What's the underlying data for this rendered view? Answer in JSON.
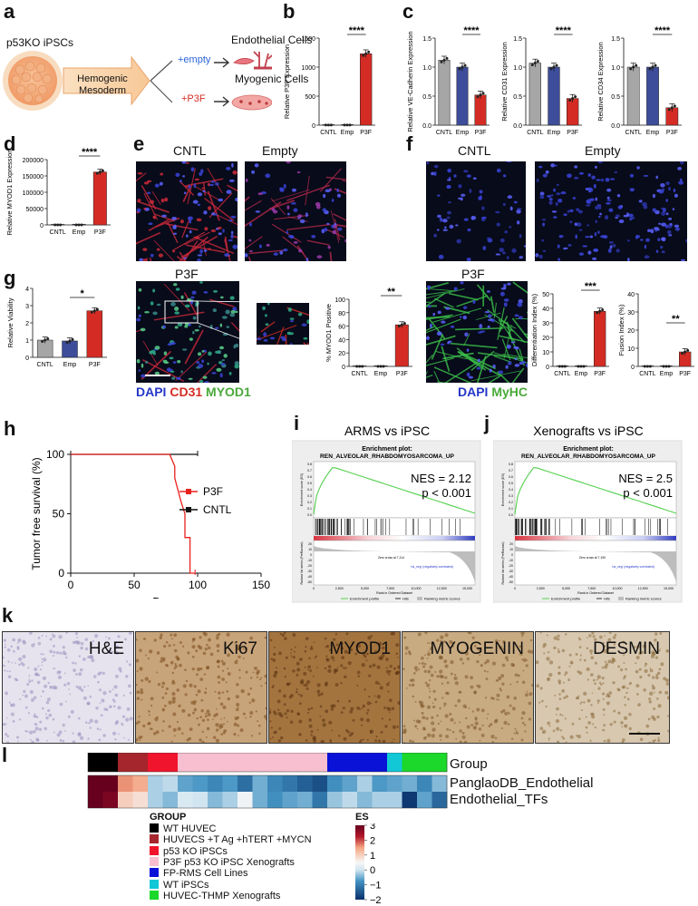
{
  "panels": {
    "a": "a",
    "b": "b",
    "c": "c",
    "d": "d",
    "e": "e",
    "f": "f",
    "g": "g",
    "h": "h",
    "i": "i",
    "j": "j",
    "k": "k",
    "l": "l"
  },
  "schematic": {
    "source": "p53KO iPSCs",
    "mesoderm_line1": "Hemogenic",
    "mesoderm_line2": "Mesoderm",
    "plus_empty": "+empty",
    "plus_p3f": "+P3F",
    "endothelial": "Endothelial Cells",
    "myogenic": "Myogenic Cells"
  },
  "colors": {
    "cntl": "#a6a6a6",
    "emp": "#3d4d9a",
    "p3f": "#d42c24",
    "nes_line": "#54d04e"
  },
  "chart_data": [
    {
      "id": "b",
      "type": "bar",
      "categories": [
        "CNTL",
        "Emp",
        "P3F"
      ],
      "values": [
        1,
        1,
        1230
      ],
      "ylabel": "Relative P3F Expression",
      "ylim": [
        0,
        1500
      ],
      "yticks": [
        0,
        500,
        1000,
        1500
      ],
      "significance": "****"
    },
    {
      "id": "c1",
      "type": "bar",
      "categories": [
        "CNTL",
        "Emp",
        "P3F"
      ],
      "values": [
        1.12,
        1.0,
        0.52
      ],
      "ylabel": "Relative VE-Cadherin Expression",
      "ylim": [
        0,
        1.5
      ],
      "yticks": [
        0.0,
        0.5,
        1.0,
        1.5
      ],
      "significance": "****"
    },
    {
      "id": "c2",
      "type": "bar",
      "categories": [
        "CNTL",
        "Emp",
        "P3F"
      ],
      "values": [
        1.07,
        1.0,
        0.46
      ],
      "ylabel": "Relative CD31 Expression",
      "ylim": [
        0,
        1.5
      ],
      "yticks": [
        0.0,
        0.5,
        1.0,
        1.5
      ],
      "significance": "****"
    },
    {
      "id": "c3",
      "type": "bar",
      "categories": [
        "CNTL",
        "Emp",
        "P3F"
      ],
      "values": [
        1.0,
        1.0,
        0.3
      ],
      "ylabel": "Relative CD34 Expression",
      "ylim": [
        0,
        1.5
      ],
      "yticks": [
        0.0,
        0.5,
        1.0,
        1.5
      ],
      "significance": "****"
    },
    {
      "id": "d",
      "type": "bar",
      "categories": [
        "CNTL",
        "Emp",
        "P3F"
      ],
      "values": [
        1,
        1,
        162000
      ],
      "ylabel": "Relative MYOD1 Expression",
      "ylim": [
        0,
        200000
      ],
      "yticks": [
        0,
        50000,
        100000,
        150000,
        200000
      ],
      "significance": "****"
    },
    {
      "id": "g",
      "type": "bar",
      "categories": [
        "CNTL",
        "Emp",
        "P3F"
      ],
      "values": [
        1.0,
        0.95,
        2.7
      ],
      "ylabel": "Relative Viability",
      "ylim": [
        0,
        4
      ],
      "yticks": [
        0,
        1,
        2,
        3,
        4
      ],
      "significance": "*"
    },
    {
      "id": "e2",
      "type": "bar",
      "categories": [
        "CNTL",
        "Emp",
        "P3F"
      ],
      "values": [
        0,
        0,
        62
      ],
      "ylabel": "% MYOD1 Positive",
      "ylim": [
        0,
        100
      ],
      "yticks": [
        0,
        20,
        40,
        60,
        80,
        100
      ],
      "significance": "**"
    },
    {
      "id": "f1",
      "type": "bar",
      "categories": [
        "CNTL",
        "Emp",
        "P3F"
      ],
      "values": [
        0,
        0,
        38
      ],
      "ylabel": "Differentiation Index (%)",
      "ylim": [
        0,
        50
      ],
      "yticks": [
        0,
        10,
        20,
        30,
        40,
        50
      ],
      "significance": "***"
    },
    {
      "id": "f2",
      "type": "bar",
      "categories": [
        "CNTL",
        "Emp",
        "P3F"
      ],
      "values": [
        0,
        0,
        8
      ],
      "ylabel": "Fusion Index (%)",
      "ylim": [
        0,
        40
      ],
      "yticks": [
        0,
        10,
        20,
        30,
        40
      ],
      "significance": "**"
    },
    {
      "id": "h",
      "type": "line",
      "title": "",
      "xlabel": "Days",
      "ylabel": "Tumor free survival (%)",
      "xlim": [
        0,
        150
      ],
      "ylim": [
        0,
        100
      ],
      "xticks": [
        0,
        50,
        100,
        150
      ],
      "yticks": [
        0,
        50,
        100
      ],
      "series": [
        {
          "name": "P3F",
          "x": [
            0,
            78,
            82,
            82,
            87,
            87,
            90,
            90,
            94,
            94,
            98
          ],
          "y": [
            100,
            100,
            90,
            80,
            60,
            60,
            50,
            30,
            30,
            0,
            0
          ]
        },
        {
          "name": "CNTL",
          "x": [
            0,
            100
          ],
          "y": [
            100,
            100
          ]
        }
      ]
    }
  ],
  "micro_e": {
    "cntl": "CNTL",
    "empty": "Empty",
    "p3f": "P3F",
    "stain_dapi": "DAPI",
    "stain_cd31": "CD31",
    "stain_myod1": "MYOD1"
  },
  "micro_f": {
    "cntl": "CNTL",
    "empty": "Empty",
    "p3f": "P3F",
    "stain_dapi": "DAPI",
    "stain_myhc": "MyHC"
  },
  "gsea": [
    {
      "title": "ARMS vs iPSC",
      "plot_title1": "Enrichment plot:",
      "plot_title2": "REN_ALVEOLAR_RHABDOMYOSARCOMA_UP",
      "nes": "NES = 2.12",
      "p": "p < 0.001",
      "xlabel": "Rank in Ordered Dataset",
      "ylabel_top": "Enrichment score (ES)",
      "ylabel_bottom": "Ranked list metric (PreRanked)",
      "pos_label": "'na_pos' (positively correlated)",
      "neg_label": "'na_neg' (negatively correlated)",
      "zero_cross": "Zero cross at 7,114",
      "legend": [
        "Enrichment profile",
        "Hits",
        "Ranking metric scores"
      ],
      "es_ticks": [
        "0.8",
        "0.7",
        "0.6",
        "0.5",
        "0.4",
        "0.3",
        "0.2",
        "0.1",
        "0.0"
      ],
      "metric_ticks": [
        "20",
        "10",
        "0",
        "-10",
        "-20",
        "-30",
        "-40",
        "-50"
      ],
      "xticks": [
        "0",
        "2,500",
        "5,000",
        "7,500",
        "10,000",
        "12,500",
        "15,000"
      ]
    },
    {
      "title": "Xenografts vs iPSC",
      "plot_title1": "Enrichment plot:",
      "plot_title2": "REN_ALVEOLAR_RHABDOMYOSARCOMA_UP",
      "nes": "NES = 2.5",
      "p": "p < 0.001",
      "xlabel": "Rank in Ordered Dataset",
      "ylabel_top": "Enrichment score (ES)",
      "ylabel_bottom": "Ranked list metric (PreRanked)",
      "pos_label": "'na_pos' (positively correlated)",
      "neg_label": "'na_neg' (negatively correlated)",
      "zero_cross": "Zero cross at 7,190",
      "legend": [
        "Enrichment profile",
        "Hits",
        "Ranking metric scores"
      ],
      "es_ticks": [
        "0.8",
        "0.7",
        "0.6",
        "0.5",
        "0.4",
        "0.3",
        "0.2",
        "0.1",
        "0.0"
      ],
      "metric_ticks": [
        "20",
        "10",
        "0",
        "-10",
        "-20",
        "-30",
        "-40",
        "-50"
      ],
      "xticks": [
        "0",
        "2,500",
        "5,000",
        "7,500",
        "10,000",
        "12,500",
        "15,000"
      ]
    }
  ],
  "ihc": [
    "H&E",
    "Ki67",
    "MYOD1",
    "MYOGENIN",
    "DESMIN"
  ],
  "heatmap": {
    "row_labels": [
      "Group",
      "PanglaoDB_Endothelial",
      "Endothelial_TFs"
    ],
    "group_title": "GROUP",
    "groups": [
      {
        "name": "WT HUVEC",
        "color": "#000000",
        "count": 2
      },
      {
        "name": "HUVECS +T Ag +hTERT +MYCN",
        "color": "#a6262d",
        "count": 2
      },
      {
        "name": "p53 KO iPSCs",
        "color": "#f0142c",
        "count": 2
      },
      {
        "name": "P3F p53 KO iPSC Xenografts",
        "color": "#f7bfcf",
        "count": 10
      },
      {
        "name": "FP-RMS Cell Lines",
        "color": "#0a12d8",
        "count": 4
      },
      {
        "name": "WT iPSCs",
        "color": "#12c8d6",
        "count": 1
      },
      {
        "name": "HUVEC-THMP Xenografts",
        "color": "#1bd82a",
        "count": 3
      }
    ],
    "values": [
      [
        3.0,
        3.0,
        1.6,
        1.4,
        -0.2,
        -0.1,
        -0.6,
        -0.7,
        -0.9,
        -0.7,
        -1.2,
        -0.5,
        -0.9,
        -1.1,
        -1.4,
        -1.6,
        -0.8,
        -0.6,
        -0.2,
        -0.7,
        -0.6,
        -0.5,
        -0.9,
        -0.4
      ],
      [
        3.0,
        2.8,
        1.0,
        0.8,
        -0.2,
        -0.4,
        0.1,
        0.0,
        -0.4,
        -0.2,
        0.4,
        -0.5,
        -0.8,
        -0.6,
        -0.5,
        -1.1,
        -0.3,
        -0.1,
        -0.4,
        -0.2,
        -0.2,
        -1.9,
        -0.6,
        -1.3
      ]
    ],
    "legend_title": "ES",
    "legend_ticks": [
      "3",
      "2",
      "1",
      "0",
      "−1",
      "−2"
    ],
    "scale_min": -2,
    "scale_max": 3
  }
}
